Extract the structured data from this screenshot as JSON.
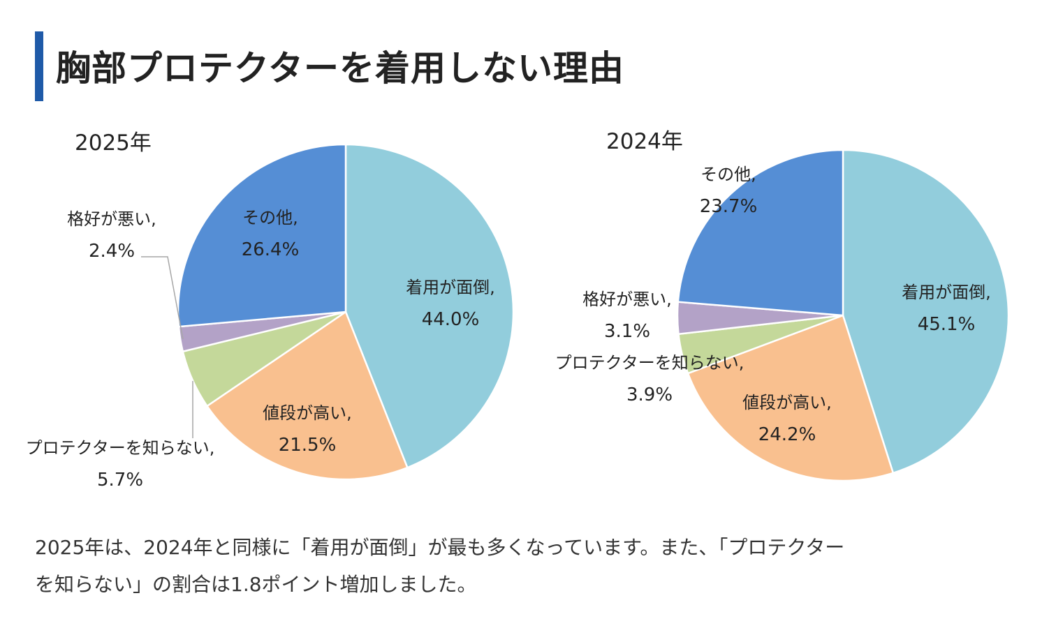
{
  "title": "胸部プロテクターを着用しない理由",
  "footer": {
    "line1": "2025年は、2024年と同様に「着用が面倒」が最も多くなっています。また、「プロテクター",
    "line2": "を知らない」の割合は1.8ポイント増加しました。"
  },
  "chart_data": [
    {
      "type": "pie",
      "title": "2025年",
      "unit": "%",
      "categories": [
        "着用が面倒",
        "値段が高い",
        "プロテクターを知らない",
        "格好が悪い",
        "その他"
      ],
      "values": [
        44.0,
        21.5,
        5.7,
        2.4,
        26.4
      ],
      "colors": [
        "#92CDDC",
        "#F9C08F",
        "#C4D89A",
        "#B3A2C7",
        "#558ED5"
      ],
      "start": "top",
      "direction": "clockwise"
    },
    {
      "type": "pie",
      "title": "2024年",
      "unit": "%",
      "categories": [
        "着用が面倒",
        "値段が高い",
        "プロテクターを知らない",
        "格好が悪い",
        "その他"
      ],
      "values": [
        45.1,
        24.2,
        3.9,
        3.1,
        23.7
      ],
      "colors": [
        "#92CDDC",
        "#F9C08F",
        "#C4D89A",
        "#B3A2C7",
        "#558ED5"
      ],
      "start": "top",
      "direction": "clockwise"
    }
  ]
}
